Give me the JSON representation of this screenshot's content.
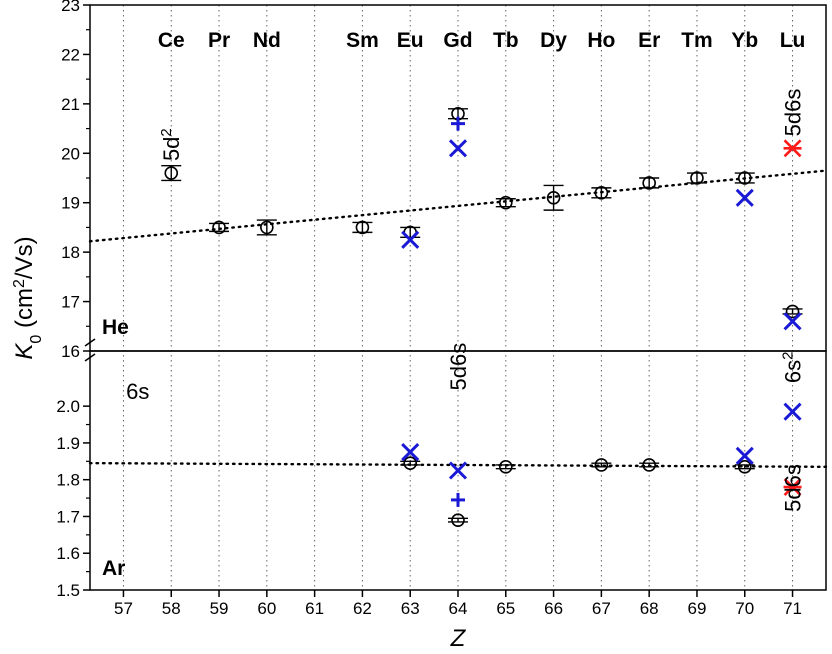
{
  "chart_data": {
    "type": "scatter",
    "xlabel": "Z",
    "ylabel": {
      "base": "K",
      "sub": "0",
      "rest": " (cm",
      "sup": "2",
      "tail": "/Vs)"
    },
    "xlim": [
      56.3,
      71.7
    ],
    "x_ticks": [
      57,
      58,
      59,
      60,
      61,
      62,
      63,
      64,
      65,
      66,
      67,
      68,
      69,
      70,
      71
    ],
    "grid": "vertical dotted lines at each Z",
    "element_labels": [
      {
        "z": 58,
        "symbol": "Ce"
      },
      {
        "z": 59,
        "symbol": "Pr"
      },
      {
        "z": 60,
        "symbol": "Nd"
      },
      {
        "z": 62,
        "symbol": "Sm"
      },
      {
        "z": 63,
        "symbol": "Eu"
      },
      {
        "z": 64,
        "symbol": "Gd"
      },
      {
        "z": 65,
        "symbol": "Tb"
      },
      {
        "z": 66,
        "symbol": "Dy"
      },
      {
        "z": 67,
        "symbol": "Ho"
      },
      {
        "z": 68,
        "symbol": "Er"
      },
      {
        "z": 69,
        "symbol": "Tm"
      },
      {
        "z": 70,
        "symbol": "Yb"
      },
      {
        "z": 71,
        "symbol": "Lu"
      }
    ],
    "panels": [
      {
        "id": "he",
        "gas": "He",
        "ylim": [
          16,
          23
        ],
        "y_ticks": [
          "16",
          "17",
          "18",
          "19",
          "20",
          "21",
          "22",
          "23"
        ],
        "circles": [
          {
            "x": 58,
            "y": 19.6,
            "err": 0.15
          },
          {
            "x": 59,
            "y": 18.5,
            "err": 0.08
          },
          {
            "x": 60,
            "y": 18.5,
            "err": 0.15
          },
          {
            "x": 62,
            "y": 18.5,
            "err": 0.1
          },
          {
            "x": 63,
            "y": 18.4,
            "err": 0.1
          },
          {
            "x": 64,
            "y": 20.8,
            "err": 0.1
          },
          {
            "x": 65,
            "y": 19.0,
            "err": 0.08
          },
          {
            "x": 66,
            "y": 19.1,
            "err": 0.25
          },
          {
            "x": 67,
            "y": 19.2,
            "err": 0.1
          },
          {
            "x": 68,
            "y": 19.4,
            "err": 0.1
          },
          {
            "x": 69,
            "y": 19.5,
            "err": 0.1
          },
          {
            "x": 70,
            "y": 19.5,
            "err": 0.1
          },
          {
            "x": 71,
            "y": 16.8,
            "err": 0.05
          }
        ],
        "x_marks": [
          {
            "x": 63,
            "y": 18.25
          },
          {
            "x": 64,
            "y": 20.1
          },
          {
            "x": 70,
            "y": 19.1
          },
          {
            "x": 71,
            "y": 16.6
          }
        ],
        "plus_marks": [
          {
            "x": 64,
            "y": 20.6
          }
        ],
        "star_marks": [
          {
            "x": 71,
            "y": 20.1
          }
        ],
        "trend": {
          "x1": 56.3,
          "y1": 18.22,
          "x2": 71.7,
          "y2": 19.65
        },
        "annotations": [
          {
            "text": "5d",
            "sup": "2",
            "x": 58,
            "y": 19.6,
            "rotate": true
          },
          {
            "text": "5d6s",
            "sup": "",
            "x": 71,
            "y": 20.1,
            "rotate": true
          }
        ]
      },
      {
        "id": "ar",
        "gas": "Ar",
        "ylim": [
          1.5,
          2.15
        ],
        "y_ticks": [
          "1.5",
          "1.6",
          "1.7",
          "1.8",
          "1.9",
          "2.0"
        ],
        "circles": [
          {
            "x": 63,
            "y": 1.845,
            "err": 0.005
          },
          {
            "x": 64,
            "y": 1.69,
            "err": 0.005
          },
          {
            "x": 65,
            "y": 1.835,
            "err": 0.005
          },
          {
            "x": 67,
            "y": 1.84,
            "err": 0.005
          },
          {
            "x": 68,
            "y": 1.84,
            "err": 0.005
          },
          {
            "x": 70,
            "y": 1.835,
            "err": 0.005
          }
        ],
        "x_marks": [
          {
            "x": 63,
            "y": 1.875
          },
          {
            "x": 64,
            "y": 1.825
          },
          {
            "x": 70,
            "y": 1.865
          },
          {
            "x": 71,
            "y": 1.985
          }
        ],
        "plus_marks": [
          {
            "x": 64,
            "y": 1.745
          }
        ],
        "star_marks": [
          {
            "x": 71,
            "y": 1.78
          }
        ],
        "trend": {
          "x1": 56.3,
          "y1": 1.845,
          "x2": 71.7,
          "y2": 1.835
        },
        "annotations": [
          {
            "text": "6s",
            "sup": "",
            "x": 57.3,
            "y": 2.02,
            "rotate": false
          },
          {
            "text": "5d6s",
            "sup": "",
            "x": 64,
            "y": 2.01,
            "rotate": true
          },
          {
            "text": "6s",
            "sup": "2",
            "x": 71,
            "y": 2.03,
            "rotate": true
          },
          {
            "text": "5d6s",
            "sup": "",
            "x": 71,
            "y": 1.68,
            "rotate": true
          }
        ]
      }
    ],
    "colors": {
      "circle": "#000000",
      "x_mark": "#1a1ad6",
      "plus_mark": "#1a1ad6",
      "star_mark": "#ff1a1a",
      "grid": "#666666"
    }
  }
}
